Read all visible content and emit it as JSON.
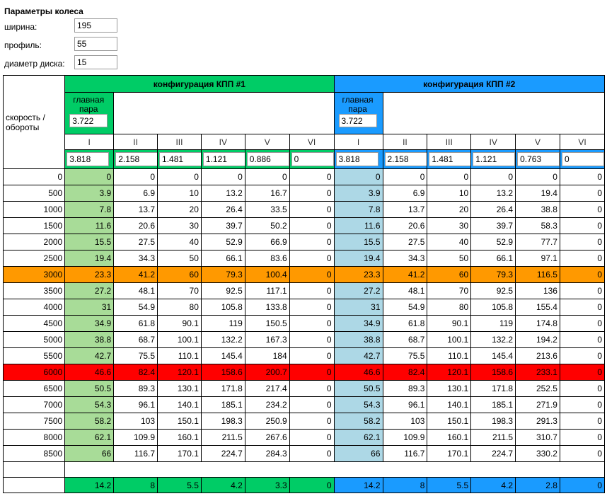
{
  "wheel": {
    "title": "Параметры колеса",
    "width_label": "ширина:",
    "width_value": "195",
    "profile_label": "профиль:",
    "profile_value": "55",
    "disk_label": "диаметр диска:",
    "disk_value": "15"
  },
  "table": {
    "speed_header": "скорость / обороты",
    "config1_title": "конфигурация КПП #1",
    "config2_title": "конфигурация КПП #2",
    "main_pair_label": "главная пара",
    "config1_main_pair": "3.722",
    "config2_main_pair": "3.722",
    "gears": [
      "I",
      "II",
      "III",
      "IV",
      "V",
      "VI"
    ],
    "config1_ratios": [
      "3.818",
      "2.158",
      "1.481",
      "1.121",
      "0.886",
      "0"
    ],
    "config2_ratios": [
      "3.818",
      "2.158",
      "1.481",
      "1.121",
      "0.763",
      "0"
    ],
    "rows": [
      {
        "rpm": "0",
        "c1": [
          "0",
          "0",
          "0",
          "0",
          "0",
          "0"
        ],
        "c2": [
          "0",
          "0",
          "0",
          "0",
          "0",
          "0"
        ],
        "hl": ""
      },
      {
        "rpm": "500",
        "c1": [
          "3.9",
          "6.9",
          "10",
          "13.2",
          "16.7",
          "0"
        ],
        "c2": [
          "3.9",
          "6.9",
          "10",
          "13.2",
          "19.4",
          "0"
        ],
        "hl": ""
      },
      {
        "rpm": "1000",
        "c1": [
          "7.8",
          "13.7",
          "20",
          "26.4",
          "33.5",
          "0"
        ],
        "c2": [
          "7.8",
          "13.7",
          "20",
          "26.4",
          "38.8",
          "0"
        ],
        "hl": ""
      },
      {
        "rpm": "1500",
        "c1": [
          "11.6",
          "20.6",
          "30",
          "39.7",
          "50.2",
          "0"
        ],
        "c2": [
          "11.6",
          "20.6",
          "30",
          "39.7",
          "58.3",
          "0"
        ],
        "hl": ""
      },
      {
        "rpm": "2000",
        "c1": [
          "15.5",
          "27.5",
          "40",
          "52.9",
          "66.9",
          "0"
        ],
        "c2": [
          "15.5",
          "27.5",
          "40",
          "52.9",
          "77.7",
          "0"
        ],
        "hl": ""
      },
      {
        "rpm": "2500",
        "c1": [
          "19.4",
          "34.3",
          "50",
          "66.1",
          "83.6",
          "0"
        ],
        "c2": [
          "19.4",
          "34.3",
          "50",
          "66.1",
          "97.1",
          "0"
        ],
        "hl": ""
      },
      {
        "rpm": "3000",
        "c1": [
          "23.3",
          "41.2",
          "60",
          "79.3",
          "100.4",
          "0"
        ],
        "c2": [
          "23.3",
          "41.2",
          "60",
          "79.3",
          "116.5",
          "0"
        ],
        "hl": "orange"
      },
      {
        "rpm": "3500",
        "c1": [
          "27.2",
          "48.1",
          "70",
          "92.5",
          "117.1",
          "0"
        ],
        "c2": [
          "27.2",
          "48.1",
          "70",
          "92.5",
          "136",
          "0"
        ],
        "hl": ""
      },
      {
        "rpm": "4000",
        "c1": [
          "31",
          "54.9",
          "80",
          "105.8",
          "133.8",
          "0"
        ],
        "c2": [
          "31",
          "54.9",
          "80",
          "105.8",
          "155.4",
          "0"
        ],
        "hl": ""
      },
      {
        "rpm": "4500",
        "c1": [
          "34.9",
          "61.8",
          "90.1",
          "119",
          "150.5",
          "0"
        ],
        "c2": [
          "34.9",
          "61.8",
          "90.1",
          "119",
          "174.8",
          "0"
        ],
        "hl": ""
      },
      {
        "rpm": "5000",
        "c1": [
          "38.8",
          "68.7",
          "100.1",
          "132.2",
          "167.3",
          "0"
        ],
        "c2": [
          "38.8",
          "68.7",
          "100.1",
          "132.2",
          "194.2",
          "0"
        ],
        "hl": ""
      },
      {
        "rpm": "5500",
        "c1": [
          "42.7",
          "75.5",
          "110.1",
          "145.4",
          "184",
          "0"
        ],
        "c2": [
          "42.7",
          "75.5",
          "110.1",
          "145.4",
          "213.6",
          "0"
        ],
        "hl": ""
      },
      {
        "rpm": "6000",
        "c1": [
          "46.6",
          "82.4",
          "120.1",
          "158.6",
          "200.7",
          "0"
        ],
        "c2": [
          "46.6",
          "82.4",
          "120.1",
          "158.6",
          "233.1",
          "0"
        ],
        "hl": "red"
      },
      {
        "rpm": "6500",
        "c1": [
          "50.5",
          "89.3",
          "130.1",
          "171.8",
          "217.4",
          "0"
        ],
        "c2": [
          "50.5",
          "89.3",
          "130.1",
          "171.8",
          "252.5",
          "0"
        ],
        "hl": ""
      },
      {
        "rpm": "7000",
        "c1": [
          "54.3",
          "96.1",
          "140.1",
          "185.1",
          "234.2",
          "0"
        ],
        "c2": [
          "54.3",
          "96.1",
          "140.1",
          "185.1",
          "271.9",
          "0"
        ],
        "hl": ""
      },
      {
        "rpm": "7500",
        "c1": [
          "58.2",
          "103",
          "150.1",
          "198.3",
          "250.9",
          "0"
        ],
        "c2": [
          "58.2",
          "103",
          "150.1",
          "198.3",
          "291.3",
          "0"
        ],
        "hl": ""
      },
      {
        "rpm": "8000",
        "c1": [
          "62.1",
          "109.9",
          "160.1",
          "211.5",
          "267.6",
          "0"
        ],
        "c2": [
          "62.1",
          "109.9",
          "160.1",
          "211.5",
          "310.7",
          "0"
        ],
        "hl": ""
      },
      {
        "rpm": "8500",
        "c1": [
          "66",
          "116.7",
          "170.1",
          "224.7",
          "284.3",
          "0"
        ],
        "c2": [
          "66",
          "116.7",
          "170.1",
          "224.7",
          "330.2",
          "0"
        ],
        "hl": ""
      }
    ],
    "config1_footer": [
      "14.2",
      "8",
      "5.5",
      "4.2",
      "3.3",
      "0"
    ],
    "config2_footer": [
      "14.2",
      "8",
      "5.5",
      "4.2",
      "2.8",
      "0"
    ]
  },
  "colors": {
    "config1": "#00cc66",
    "config2": "#1a9bff",
    "first_gear1": "#a8dc98",
    "first_gear2": "#add8e6",
    "highlight_orange": "#ff9900",
    "highlight_red": "#ff0000"
  }
}
